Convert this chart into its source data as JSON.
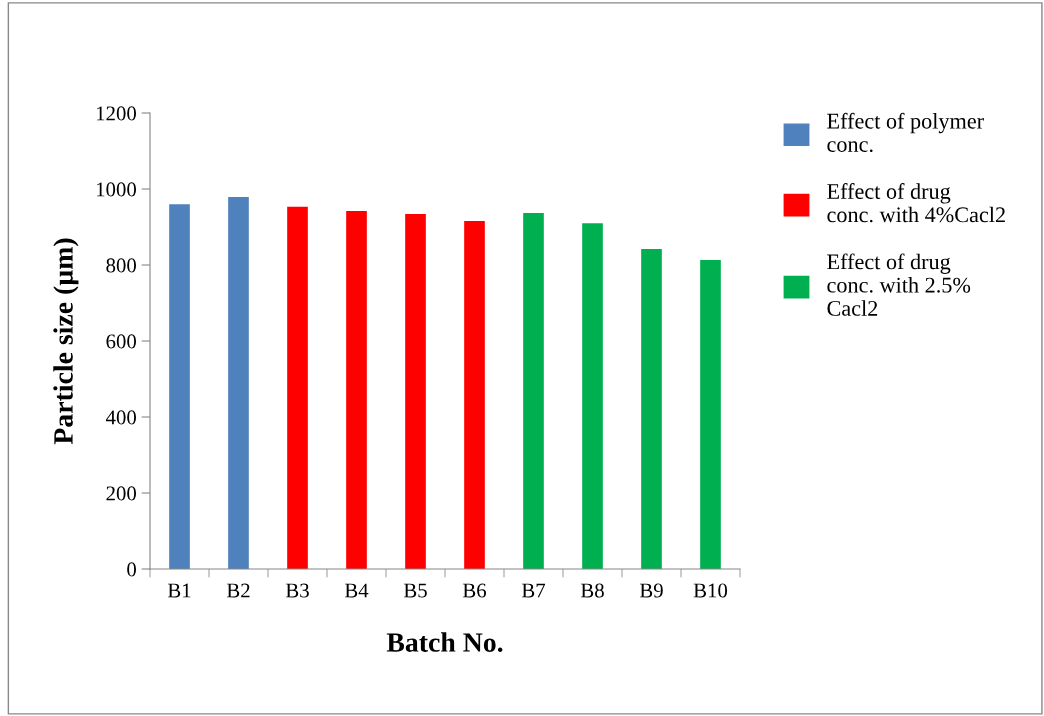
{
  "chart_data": {
    "type": "bar",
    "xlabel": "Batch No.",
    "ylabel": "Particle size (µm)",
    "categories": [
      "B1",
      "B2",
      "B3",
      "B4",
      "B5",
      "B6",
      "B7",
      "B8",
      "B9",
      "B10"
    ],
    "series": [
      {
        "name": "Effect of polymer conc.",
        "color": "#4f81bd",
        "values": [
          960,
          979,
          null,
          null,
          null,
          null,
          null,
          null,
          null,
          null
        ]
      },
      {
        "name": "Effect of drug conc. with 4%Cacl2",
        "color": "#ff0000",
        "values": [
          null,
          null,
          953,
          942,
          934,
          916,
          null,
          null,
          null,
          null
        ]
      },
      {
        "name": "Effect of drug conc. with 2.5% Cacl2",
        "color": "#00b050",
        "values": [
          null,
          null,
          null,
          null,
          null,
          null,
          937,
          910,
          842,
          813
        ]
      }
    ],
    "ylim": [
      0,
      1200
    ],
    "yticks": [
      0,
      200,
      400,
      600,
      800,
      1000,
      1200
    ],
    "grid": false,
    "legend": "right"
  }
}
